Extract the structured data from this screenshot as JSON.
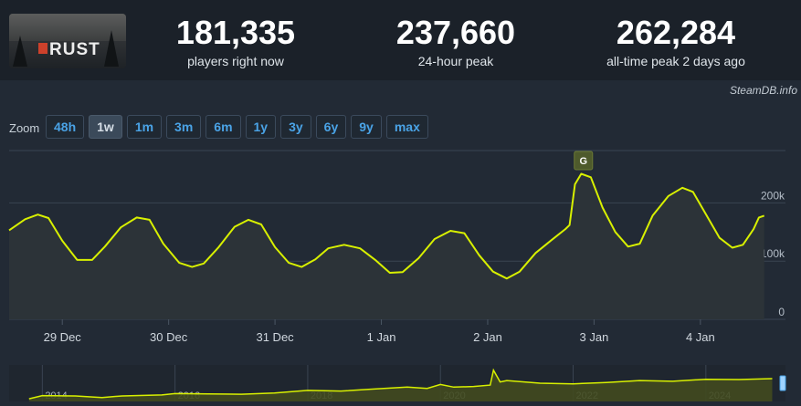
{
  "header": {
    "logo_text": "RUST",
    "stats": [
      {
        "value": "181,335",
        "label": "players right now"
      },
      {
        "value": "237,660",
        "label": "24-hour peak"
      },
      {
        "value": "262,284",
        "label": "all-time peak 2 days ago"
      }
    ]
  },
  "credit": "SteamDB.info",
  "zoom": {
    "label": "Zoom",
    "buttons": [
      "48h",
      "1w",
      "1m",
      "3m",
      "6m",
      "1y",
      "3y",
      "6y",
      "9y",
      "max"
    ],
    "active": "1w"
  },
  "colors": {
    "line": "#d8f000",
    "grid": "#3a4452",
    "panel": "#222a35",
    "active_button": "#3b4a5a",
    "button_text": "#4aa3e6"
  },
  "chart_data": [
    {
      "type": "line",
      "title": "",
      "xlabel": "",
      "ylabel": "",
      "ylim": [
        0,
        290000
      ],
      "xlim": [
        0,
        7.3
      ],
      "x_ticks": [
        {
          "label": "29 Dec",
          "x": 0.5
        },
        {
          "label": "30 Dec",
          "x": 1.5
        },
        {
          "label": "31 Dec",
          "x": 2.5
        },
        {
          "label": "1 Jan",
          "x": 3.5
        },
        {
          "label": "2 Jan",
          "x": 4.5
        },
        {
          "label": "3 Jan",
          "x": 5.5
        },
        {
          "label": "4 Jan",
          "x": 6.5
        }
      ],
      "y_ticks": [
        {
          "label": "200k",
          "y": 200000
        },
        {
          "label": "100k",
          "y": 100000
        },
        {
          "label": "0",
          "y": 0
        }
      ],
      "grid": true,
      "annotation": {
        "label": "G",
        "x": 5.4
      },
      "series": [
        {
          "values": [
            [
              0.0,
              153000
            ],
            [
              0.15,
              172000
            ],
            [
              0.27,
              180000
            ],
            [
              0.37,
              174000
            ],
            [
              0.5,
              135000
            ],
            [
              0.64,
              102000
            ],
            [
              0.78,
              102000
            ],
            [
              0.9,
              125000
            ],
            [
              1.05,
              158000
            ],
            [
              1.2,
              175000
            ],
            [
              1.32,
              171000
            ],
            [
              1.45,
              130000
            ],
            [
              1.6,
              97000
            ],
            [
              1.72,
              90000
            ],
            [
              1.83,
              96000
            ],
            [
              1.97,
              124000
            ],
            [
              2.12,
              159000
            ],
            [
              2.25,
              171000
            ],
            [
              2.37,
              163000
            ],
            [
              2.5,
              124000
            ],
            [
              2.63,
              97000
            ],
            [
              2.75,
              90000
            ],
            [
              2.88,
              103000
            ],
            [
              3.0,
              122000
            ],
            [
              3.15,
              128000
            ],
            [
              3.3,
              122000
            ],
            [
              3.45,
              101000
            ],
            [
              3.58,
              80000
            ],
            [
              3.7,
              81000
            ],
            [
              3.85,
              105000
            ],
            [
              4.0,
              138000
            ],
            [
              4.15,
              152000
            ],
            [
              4.28,
              148000
            ],
            [
              4.42,
              110000
            ],
            [
              4.55,
              82000
            ],
            [
              4.68,
              70000
            ],
            [
              4.8,
              82000
            ],
            [
              4.95,
              114000
            ],
            [
              5.1,
              136000
            ],
            [
              5.23,
              155000
            ],
            [
              5.27,
              162000
            ],
            [
              5.32,
              232000
            ],
            [
              5.38,
              250000
            ],
            [
              5.47,
              244000
            ],
            [
              5.58,
              192000
            ],
            [
              5.7,
              150000
            ],
            [
              5.82,
              125000
            ],
            [
              5.93,
              130000
            ],
            [
              6.05,
              178000
            ],
            [
              6.2,
              212000
            ],
            [
              6.33,
              226000
            ],
            [
              6.43,
              219000
            ],
            [
              6.55,
              181000
            ],
            [
              6.68,
              140000
            ],
            [
              6.8,
              123000
            ],
            [
              6.9,
              128000
            ],
            [
              7.0,
              155000
            ],
            [
              7.05,
              175000
            ],
            [
              7.1,
              178000
            ]
          ]
        }
      ]
    },
    {
      "type": "area",
      "title": "",
      "xlabel": "",
      "ylabel": "",
      "xlim": [
        2013.5,
        2025.2
      ],
      "ylim": [
        0,
        280000
      ],
      "x_ticks": [
        "2014",
        "2016",
        "2018",
        "2020",
        "2022",
        "2024"
      ],
      "series": [
        {
          "values": [
            [
              2013.8,
              20000
            ],
            [
              2014.0,
              45000
            ],
            [
              2014.5,
              42000
            ],
            [
              2014.9,
              30000
            ],
            [
              2015.2,
              42000
            ],
            [
              2015.8,
              50000
            ],
            [
              2016.0,
              60000
            ],
            [
              2016.5,
              58000
            ],
            [
              2017.0,
              55000
            ],
            [
              2017.5,
              65000
            ],
            [
              2018.0,
              85000
            ],
            [
              2018.5,
              80000
            ],
            [
              2019.0,
              95000
            ],
            [
              2019.5,
              110000
            ],
            [
              2019.8,
              100000
            ],
            [
              2020.0,
              130000
            ],
            [
              2020.2,
              110000
            ],
            [
              2020.5,
              115000
            ],
            [
              2020.75,
              125000
            ],
            [
              2020.8,
              240000
            ],
            [
              2020.9,
              150000
            ],
            [
              2021.0,
              160000
            ],
            [
              2021.5,
              140000
            ],
            [
              2022.0,
              135000
            ],
            [
              2022.5,
              145000
            ],
            [
              2023.0,
              160000
            ],
            [
              2023.5,
              155000
            ],
            [
              2024.0,
              170000
            ],
            [
              2024.5,
              168000
            ],
            [
              2025.0,
              175000
            ]
          ]
        }
      ]
    }
  ]
}
